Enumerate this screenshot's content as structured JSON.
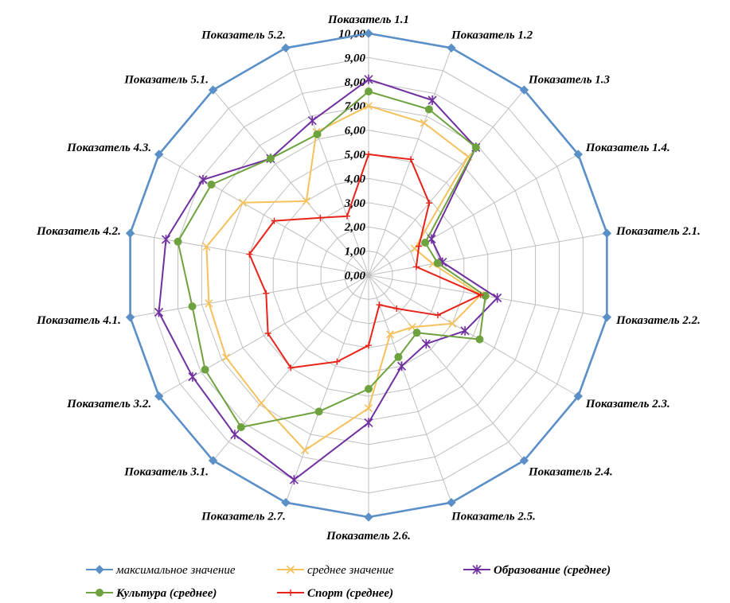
{
  "chart_data": {
    "type": "radar",
    "categories": [
      "Показатель 1.1",
      "Показатель 1.2",
      "Показатель 1.3",
      "Показатель 1.4.",
      "Показатель 2.1.",
      "Показатель 2.2.",
      "Показатель 2.3.",
      "Показатель 2.4.",
      "Показатель 2.5.",
      "Показатель 2.6.",
      "Показатель 2.7.",
      "Показатель 3.1.",
      "Показатель 3.2.",
      "Показатель 4.1.",
      "Показатель 4.2.",
      "Показатель 4.3.",
      "Показатель 5.1.",
      "Показатель 5.2."
    ],
    "rmin": 0,
    "rmax": 10,
    "ticks": [
      "0,00",
      "1,00",
      "2,00",
      "3,00",
      "4,00",
      "5,00",
      "6,00",
      "7,00",
      "8,00",
      "9,00",
      "10,00"
    ],
    "grid": true,
    "legend_position": "bottom",
    "series": [
      {
        "name": "максимальное значение",
        "color": "#5b8fc7",
        "marker": "diamond",
        "values": [
          10,
          10,
          10,
          10,
          10,
          10,
          10,
          10,
          10,
          10,
          10,
          10,
          10,
          10,
          10,
          10,
          10,
          10
        ]
      },
      {
        "name": "среднее значение",
        "color": "#f5c15c",
        "marker": "x",
        "values": [
          7.0,
          6.7,
          6.4,
          2.2,
          2.7,
          4.7,
          4.0,
          2.8,
          2.6,
          5.5,
          7.7,
          6.9,
          6.8,
          6.7,
          6.8,
          6.0,
          4.0,
          6.3
        ]
      },
      {
        "name": "Образование (среднее)",
        "color": "#7030a0",
        "marker": "star",
        "values": [
          8.1,
          7.7,
          6.9,
          3.0,
          3.1,
          5.4,
          4.6,
          3.7,
          4.0,
          6.1,
          9.0,
          8.6,
          8.4,
          8.8,
          8.5,
          7.9,
          6.3,
          6.8
        ]
      },
      {
        "name": "Культура (среднее)",
        "color": "#6ea23f",
        "marker": "circle",
        "values": [
          7.6,
          7.3,
          6.9,
          2.7,
          2.9,
          4.9,
          5.3,
          3.1,
          3.6,
          4.7,
          6.0,
          8.2,
          7.8,
          7.4,
          8.0,
          7.5,
          6.3,
          6.2
        ]
      },
      {
        "name": "Спорт (среднее)",
        "color": "#e8231a",
        "marker": "plus",
        "values": [
          5.0,
          5.1,
          3.9,
          2.4,
          2.0,
          4.7,
          3.3,
          1.8,
          1.3,
          2.9,
          3.8,
          5.0,
          4.8,
          4.3,
          5.0,
          4.5,
          3.1,
          2.6
        ]
      }
    ]
  }
}
